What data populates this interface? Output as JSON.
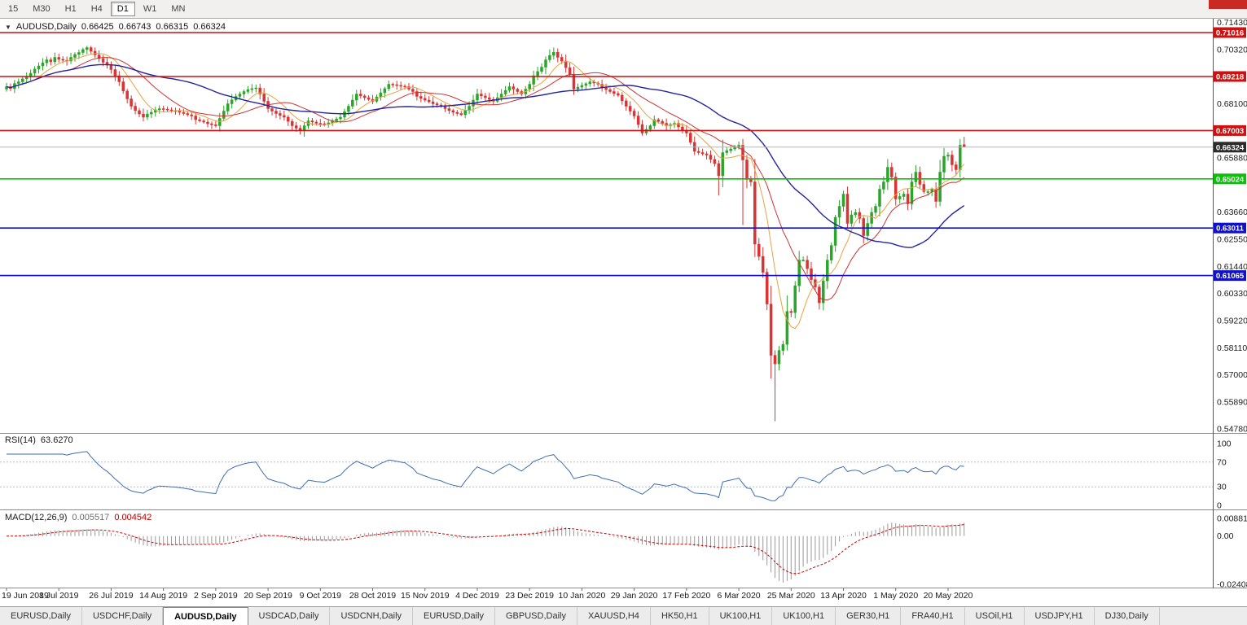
{
  "toolbar": {
    "timeframes": [
      "15",
      "M30",
      "H1",
      "H4",
      "D1",
      "W1",
      "MN"
    ],
    "active": "D1"
  },
  "title": {
    "dropdown_icon": "▼",
    "symbol": "AUDUSD,Daily",
    "open": "0.66425",
    "high": "0.66743",
    "low": "0.66315",
    "close": "0.66324"
  },
  "chart_data": {
    "type": "candlestick",
    "symbol": "AUDUSD",
    "timeframe": "Daily",
    "price_range": {
      "min": 0.5462,
      "max": 0.7155
    },
    "y_ticks": [
      "0.71430",
      "0.70320",
      "0.69210",
      "0.68100",
      "0.66990",
      "0.65880",
      "0.64770",
      "0.63660",
      "0.62550",
      "0.61440",
      "0.60330",
      "0.59220",
      "0.58110",
      "0.57000",
      "0.55890",
      "0.54780"
    ],
    "x_labels": [
      "19 Jun 2019",
      "8 Jul 2019",
      "26 Jul 2019",
      "14 Aug 2019",
      "2 Sep 2019",
      "20 Sep 2019",
      "9 Oct 2019",
      "28 Oct 2019",
      "15 Nov 2019",
      "4 Dec 2019",
      "23 Dec 2019",
      "10 Jan 2020",
      "29 Jan 2020",
      "17 Feb 2020",
      "6 Mar 2020",
      "25 Mar 2020",
      "13 Apr 2020",
      "1 May 2020",
      "20 May 2020"
    ],
    "bar_interval": 13,
    "h_lines": [
      {
        "value": 0.71016,
        "label": "0.71016",
        "color": "#cc1111"
      },
      {
        "value": 0.69218,
        "label": "0.69218",
        "color": "#cc1111"
      },
      {
        "value": 0.67003,
        "label": "0.67003",
        "color": "#cc1111"
      },
      {
        "value": 0.65024,
        "label": "0.65024",
        "color": "#0bbf0b"
      },
      {
        "value": 0.63011,
        "label": "0.63011",
        "color": "#1111cc"
      },
      {
        "value": 0.61065,
        "label": "0.61065",
        "color": "#1111cc"
      }
    ],
    "bid": {
      "value": 0.66324,
      "label": "0.66324",
      "badge_color": "#2b2b2b",
      "line_color": "#b5b5b5"
    },
    "moving_averages": [
      {
        "period": 8,
        "color": "#e8a33d"
      },
      {
        "period": 17,
        "color": "#cc3333"
      },
      {
        "period": 40,
        "color": "#24249c"
      }
    ],
    "candles": {
      "up_color": "#2aa52a",
      "down_color": "#d93434",
      "first_open": 0.687,
      "closes": [
        0.688,
        0.6872,
        0.6893,
        0.69,
        0.6912,
        0.692,
        0.6935,
        0.6952,
        0.6965,
        0.6978,
        0.699,
        0.6982,
        0.7,
        0.6992,
        0.6988,
        0.6985,
        0.7,
        0.7012,
        0.702,
        0.7032,
        0.704,
        0.7025,
        0.701,
        0.6995,
        0.698,
        0.6968,
        0.695,
        0.6925,
        0.69,
        0.6862,
        0.683,
        0.68,
        0.6782,
        0.6768,
        0.6755,
        0.6768,
        0.6775,
        0.6785,
        0.679,
        0.6788,
        0.6785,
        0.6782,
        0.678,
        0.6775,
        0.677,
        0.6765,
        0.676,
        0.6745,
        0.674,
        0.6735,
        0.6728,
        0.6724,
        0.672,
        0.675,
        0.678,
        0.681,
        0.6826,
        0.684,
        0.685,
        0.686,
        0.6868,
        0.6872,
        0.6875,
        0.685,
        0.682,
        0.679,
        0.678,
        0.677,
        0.6762,
        0.6755,
        0.6738,
        0.672,
        0.671,
        0.67,
        0.672,
        0.674,
        0.6735,
        0.673,
        0.6728,
        0.6725,
        0.6732,
        0.674,
        0.6748,
        0.6755,
        0.6778,
        0.68,
        0.6825,
        0.685,
        0.6842,
        0.6835,
        0.6828,
        0.682,
        0.6838,
        0.6855,
        0.6872,
        0.689,
        0.6888,
        0.6885,
        0.6882,
        0.688,
        0.687,
        0.686,
        0.684,
        0.6832,
        0.6825,
        0.6818,
        0.681,
        0.6805,
        0.68,
        0.679,
        0.6782,
        0.6775,
        0.677,
        0.6765,
        0.6782,
        0.68,
        0.6825,
        0.685,
        0.6842,
        0.6835,
        0.6828,
        0.682,
        0.6835,
        0.685,
        0.6865,
        0.688,
        0.687,
        0.686,
        0.685,
        0.687,
        0.689,
        0.6925,
        0.6942,
        0.696,
        0.699,
        0.7008,
        0.7021,
        0.7,
        0.6985,
        0.6958,
        0.693,
        0.687,
        0.6878,
        0.6885,
        0.6892,
        0.69,
        0.6895,
        0.689,
        0.6875,
        0.6868,
        0.686,
        0.6852,
        0.6845,
        0.6822,
        0.68,
        0.678,
        0.676,
        0.6725,
        0.669,
        0.6705,
        0.672,
        0.6745,
        0.6738,
        0.673,
        0.672,
        0.6725,
        0.673,
        0.6715,
        0.6702,
        0.669,
        0.6652,
        0.6615,
        0.661,
        0.6605,
        0.66,
        0.6582,
        0.6565,
        0.6515,
        0.661,
        0.6618,
        0.6625,
        0.6632,
        0.664,
        0.658,
        0.65,
        0.649,
        0.6235,
        0.6185,
        0.612,
        0.599,
        0.578,
        0.5745,
        0.58,
        0.5825,
        0.596,
        0.5955,
        0.6065,
        0.617,
        0.617,
        0.6135,
        0.609,
        0.606,
        0.5995,
        0.6085,
        0.617,
        0.623,
        0.6345,
        0.639,
        0.644,
        0.632,
        0.6355,
        0.6365,
        0.634,
        0.627,
        0.632,
        0.6365,
        0.639,
        0.646,
        0.649,
        0.655,
        0.651,
        0.642,
        0.643,
        0.644,
        0.64,
        0.649,
        0.653,
        0.648,
        0.645,
        0.645,
        0.646,
        0.641,
        0.653,
        0.6595,
        0.66,
        0.656,
        0.654,
        0.664,
        0.66324
      ],
      "special": {
        "177": {
          "low": 0.6434
        },
        "183": {
          "low": 0.6313
        },
        "190": {
          "low": 0.5685
        },
        "191": {
          "low": 0.551
        },
        "237": {
          "high": 0.6665
        },
        "238": {
          "open": 0.66425,
          "high": 0.66743,
          "low": 0.66315
        }
      }
    },
    "rsi": {
      "name": "RSI(14)",
      "display_value": "63.6270",
      "period": 14,
      "levels": [
        100,
        70,
        30,
        0
      ],
      "dashed_levels": [
        70,
        30
      ],
      "line_color": "#3e6fae"
    },
    "macd": {
      "name": "MACD(12,26,9)",
      "value_main": "0.005517",
      "value_signal": "0.004542",
      "fast": 12,
      "slow": 26,
      "signal": 9,
      "axis_labels": [
        "0.008815",
        "0.00",
        "-0.02408"
      ],
      "axis_values": [
        0.008815,
        0,
        -0.02408
      ],
      "histogram_color": "#9a9a9a",
      "signal_color": "#cc0000"
    }
  },
  "tabs": [
    {
      "label": "EURUSD,Daily",
      "active": false
    },
    {
      "label": "USDCHF,Daily",
      "active": false
    },
    {
      "label": "AUDUSD,Daily",
      "active": true
    },
    {
      "label": "USDCAD,Daily",
      "active": false
    },
    {
      "label": "USDCNH,Daily",
      "active": false
    },
    {
      "label": "EURUSD,Daily",
      "active": false
    },
    {
      "label": "GBPUSD,Daily",
      "active": false
    },
    {
      "label": "XAUUSD,H4",
      "active": false
    },
    {
      "label": "HK50,H1",
      "active": false
    },
    {
      "label": "UK100,H1",
      "active": false
    },
    {
      "label": "UK100,H1",
      "active": false
    },
    {
      "label": "GER30,H1",
      "active": false
    },
    {
      "label": "FRA40,H1",
      "active": false
    },
    {
      "label": "USOil,H1",
      "active": false
    },
    {
      "label": "USDJPY,H1",
      "active": false
    },
    {
      "label": "DJ30,Daily",
      "active": false
    }
  ]
}
